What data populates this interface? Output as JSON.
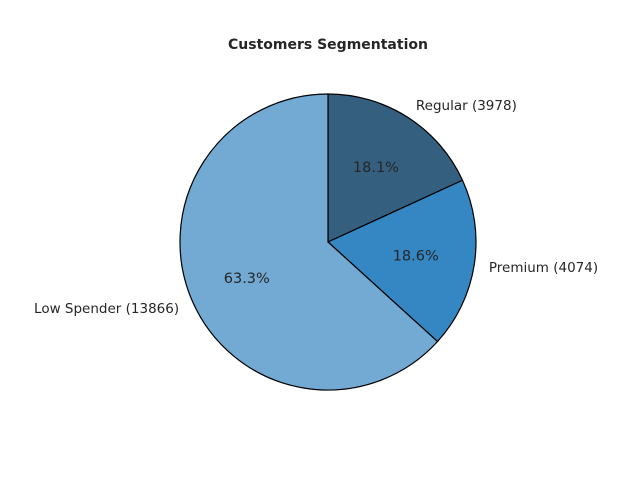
{
  "chart_data": {
    "type": "pie",
    "title": "Customers Segmentation",
    "start_angle_deg": 90,
    "direction": "clockwise",
    "slices": [
      {
        "label": "Regular (3978)",
        "value": 3978,
        "percent_label": "18.1%",
        "color": "#345f7f"
      },
      {
        "label": "Premium (4074)",
        "value": 4074,
        "percent_label": "18.6%",
        "color": "#3487c2"
      },
      {
        "label": "Low Spender (13866)",
        "value": 13866,
        "percent_label": "63.3%",
        "color": "#72aad3"
      }
    ],
    "edge_color": "#000000",
    "legend": "none"
  }
}
